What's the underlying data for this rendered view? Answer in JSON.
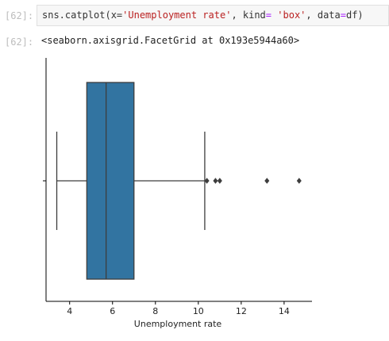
{
  "cell_input": {
    "prompt": "[62]:",
    "code_parts": {
      "p1": "sns.catplot(x=",
      "s1": "'Unemployment rate'",
      "p2": ", kind",
      "op1": "=",
      "p3": " ",
      "s2": "'box'",
      "p4": ", data",
      "op2": "=",
      "p5": "df)"
    }
  },
  "cell_output": {
    "prompt": "[62]:",
    "text": "<seaborn.axisgrid.FacetGrid at 0x193e5944a60>"
  },
  "chart_data": {
    "type": "box",
    "xlabel": "Unemployment rate",
    "xlim": [
      2.9,
      15.3
    ],
    "xticks": [
      4,
      6,
      8,
      10,
      12,
      14
    ],
    "box": {
      "whisker_low": 3.4,
      "q1": 4.8,
      "median": 5.7,
      "q3": 7.0,
      "whisker_high": 10.3
    },
    "outliers": [
      10.4,
      10.8,
      11.0,
      13.2,
      14.7
    ],
    "colors": {
      "box_fill": "#3274a1",
      "line": "#3d3d3d"
    }
  }
}
